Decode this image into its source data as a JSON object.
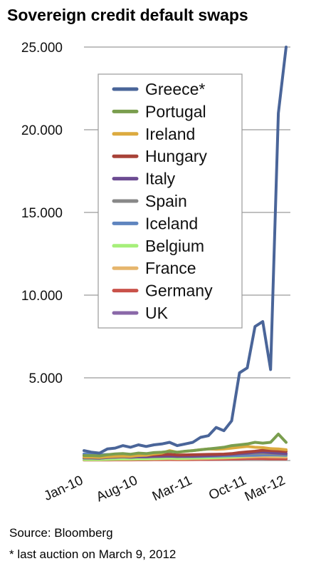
{
  "chart_data": {
    "type": "line",
    "title": "Sovereign credit default swaps",
    "ylim": [
      0,
      25000
    ],
    "yticks": [
      "5.000",
      "10.000",
      "15.000",
      "20.000",
      "25.000"
    ],
    "ytick_values": [
      5000,
      10000,
      15000,
      20000,
      25000
    ],
    "xticks": [
      {
        "label": "Jan-10",
        "x": 0
      },
      {
        "label": "Aug-10",
        "x": 7
      },
      {
        "label": "Mar-11",
        "x": 14
      },
      {
        "label": "Oct-11",
        "x": 21
      },
      {
        "label": "Mar-12",
        "x": 26
      }
    ],
    "grid": true,
    "legend_position": "upper-left",
    "series": [
      {
        "name": "Greece*",
        "color": "#4a6599",
        "values": [
          600,
          500,
          450,
          700,
          750,
          900,
          800,
          950,
          850,
          950,
          1000,
          1100,
          900,
          1000,
          1100,
          1400,
          1500,
          2000,
          1800,
          2400,
          5300,
          5600,
          8100,
          8400,
          5500,
          21000,
          25000
        ]
      },
      {
        "name": "Portugal",
        "color": "#7a9e4e",
        "values": [
          300,
          300,
          280,
          350,
          400,
          420,
          380,
          450,
          420,
          480,
          500,
          550,
          500,
          560,
          600,
          650,
          700,
          750,
          800,
          900,
          950,
          1000,
          1100,
          1050,
          1100,
          1600,
          1100
        ]
      },
      {
        "name": "Ireland",
        "color": "#dcaa3f",
        "values": [
          200,
          200,
          180,
          220,
          240,
          260,
          250,
          300,
          320,
          400,
          450,
          600,
          500,
          550,
          600,
          650,
          700,
          680,
          700,
          750,
          800,
          850,
          800,
          780,
          720,
          700,
          650
        ]
      },
      {
        "name": "Hungary",
        "color": "#a84238",
        "values": [
          300,
          280,
          250,
          270,
          300,
          320,
          300,
          330,
          310,
          330,
          350,
          370,
          330,
          340,
          350,
          360,
          370,
          380,
          390,
          420,
          480,
          520,
          560,
          620,
          600,
          580,
          550
        ]
      },
      {
        "name": "Italy",
        "color": "#6c4b92",
        "values": [
          150,
          150,
          140,
          180,
          200,
          220,
          200,
          230,
          220,
          240,
          250,
          260,
          240,
          250,
          260,
          280,
          300,
          320,
          350,
          380,
          420,
          450,
          500,
          520,
          480,
          450,
          420
        ]
      },
      {
        "name": "Spain",
        "color": "#888888",
        "values": [
          150,
          150,
          140,
          180,
          210,
          230,
          210,
          240,
          230,
          250,
          260,
          280,
          250,
          260,
          270,
          290,
          310,
          330,
          350,
          380,
          400,
          420,
          440,
          430,
          420,
          400,
          380
        ]
      },
      {
        "name": "Iceland",
        "color": "#5f85bf",
        "values": [
          400,
          380,
          350,
          360,
          340,
          320,
          300,
          310,
          300,
          290,
          280,
          270,
          260,
          250,
          240,
          250,
          260,
          270,
          280,
          290,
          300,
          310,
          320,
          330,
          340,
          330,
          320
        ]
      },
      {
        "name": "Belgium",
        "color": "#a6ef7a",
        "values": [
          60,
          60,
          60,
          70,
          80,
          90,
          90,
          100,
          100,
          120,
          130,
          150,
          130,
          140,
          150,
          160,
          170,
          180,
          200,
          230,
          260,
          290,
          320,
          340,
          330,
          320,
          300
        ]
      },
      {
        "name": "France",
        "color": "#e6b66d",
        "values": [
          50,
          50,
          50,
          60,
          70,
          70,
          70,
          80,
          80,
          90,
          100,
          110,
          100,
          100,
          110,
          120,
          130,
          140,
          150,
          170,
          190,
          210,
          230,
          240,
          230,
          220,
          210
        ]
      },
      {
        "name": "Germany",
        "color": "#c9524a",
        "values": [
          30,
          30,
          30,
          35,
          40,
          40,
          40,
          45,
          45,
          50,
          55,
          60,
          55,
          55,
          60,
          65,
          70,
          75,
          80,
          90,
          100,
          110,
          120,
          110,
          100,
          95,
          90
        ]
      },
      {
        "name": "UK",
        "color": "#8a68a8",
        "values": [
          70,
          70,
          70,
          75,
          80,
          80,
          75,
          80,
          75,
          80,
          85,
          90,
          80,
          80,
          85,
          90,
          95,
          100,
          105,
          110,
          115,
          120,
          125,
          120,
          115,
          110,
          105
        ]
      }
    ]
  },
  "source": "Source: Bloomberg",
  "footnote": "* last auction on March 9, 2012"
}
